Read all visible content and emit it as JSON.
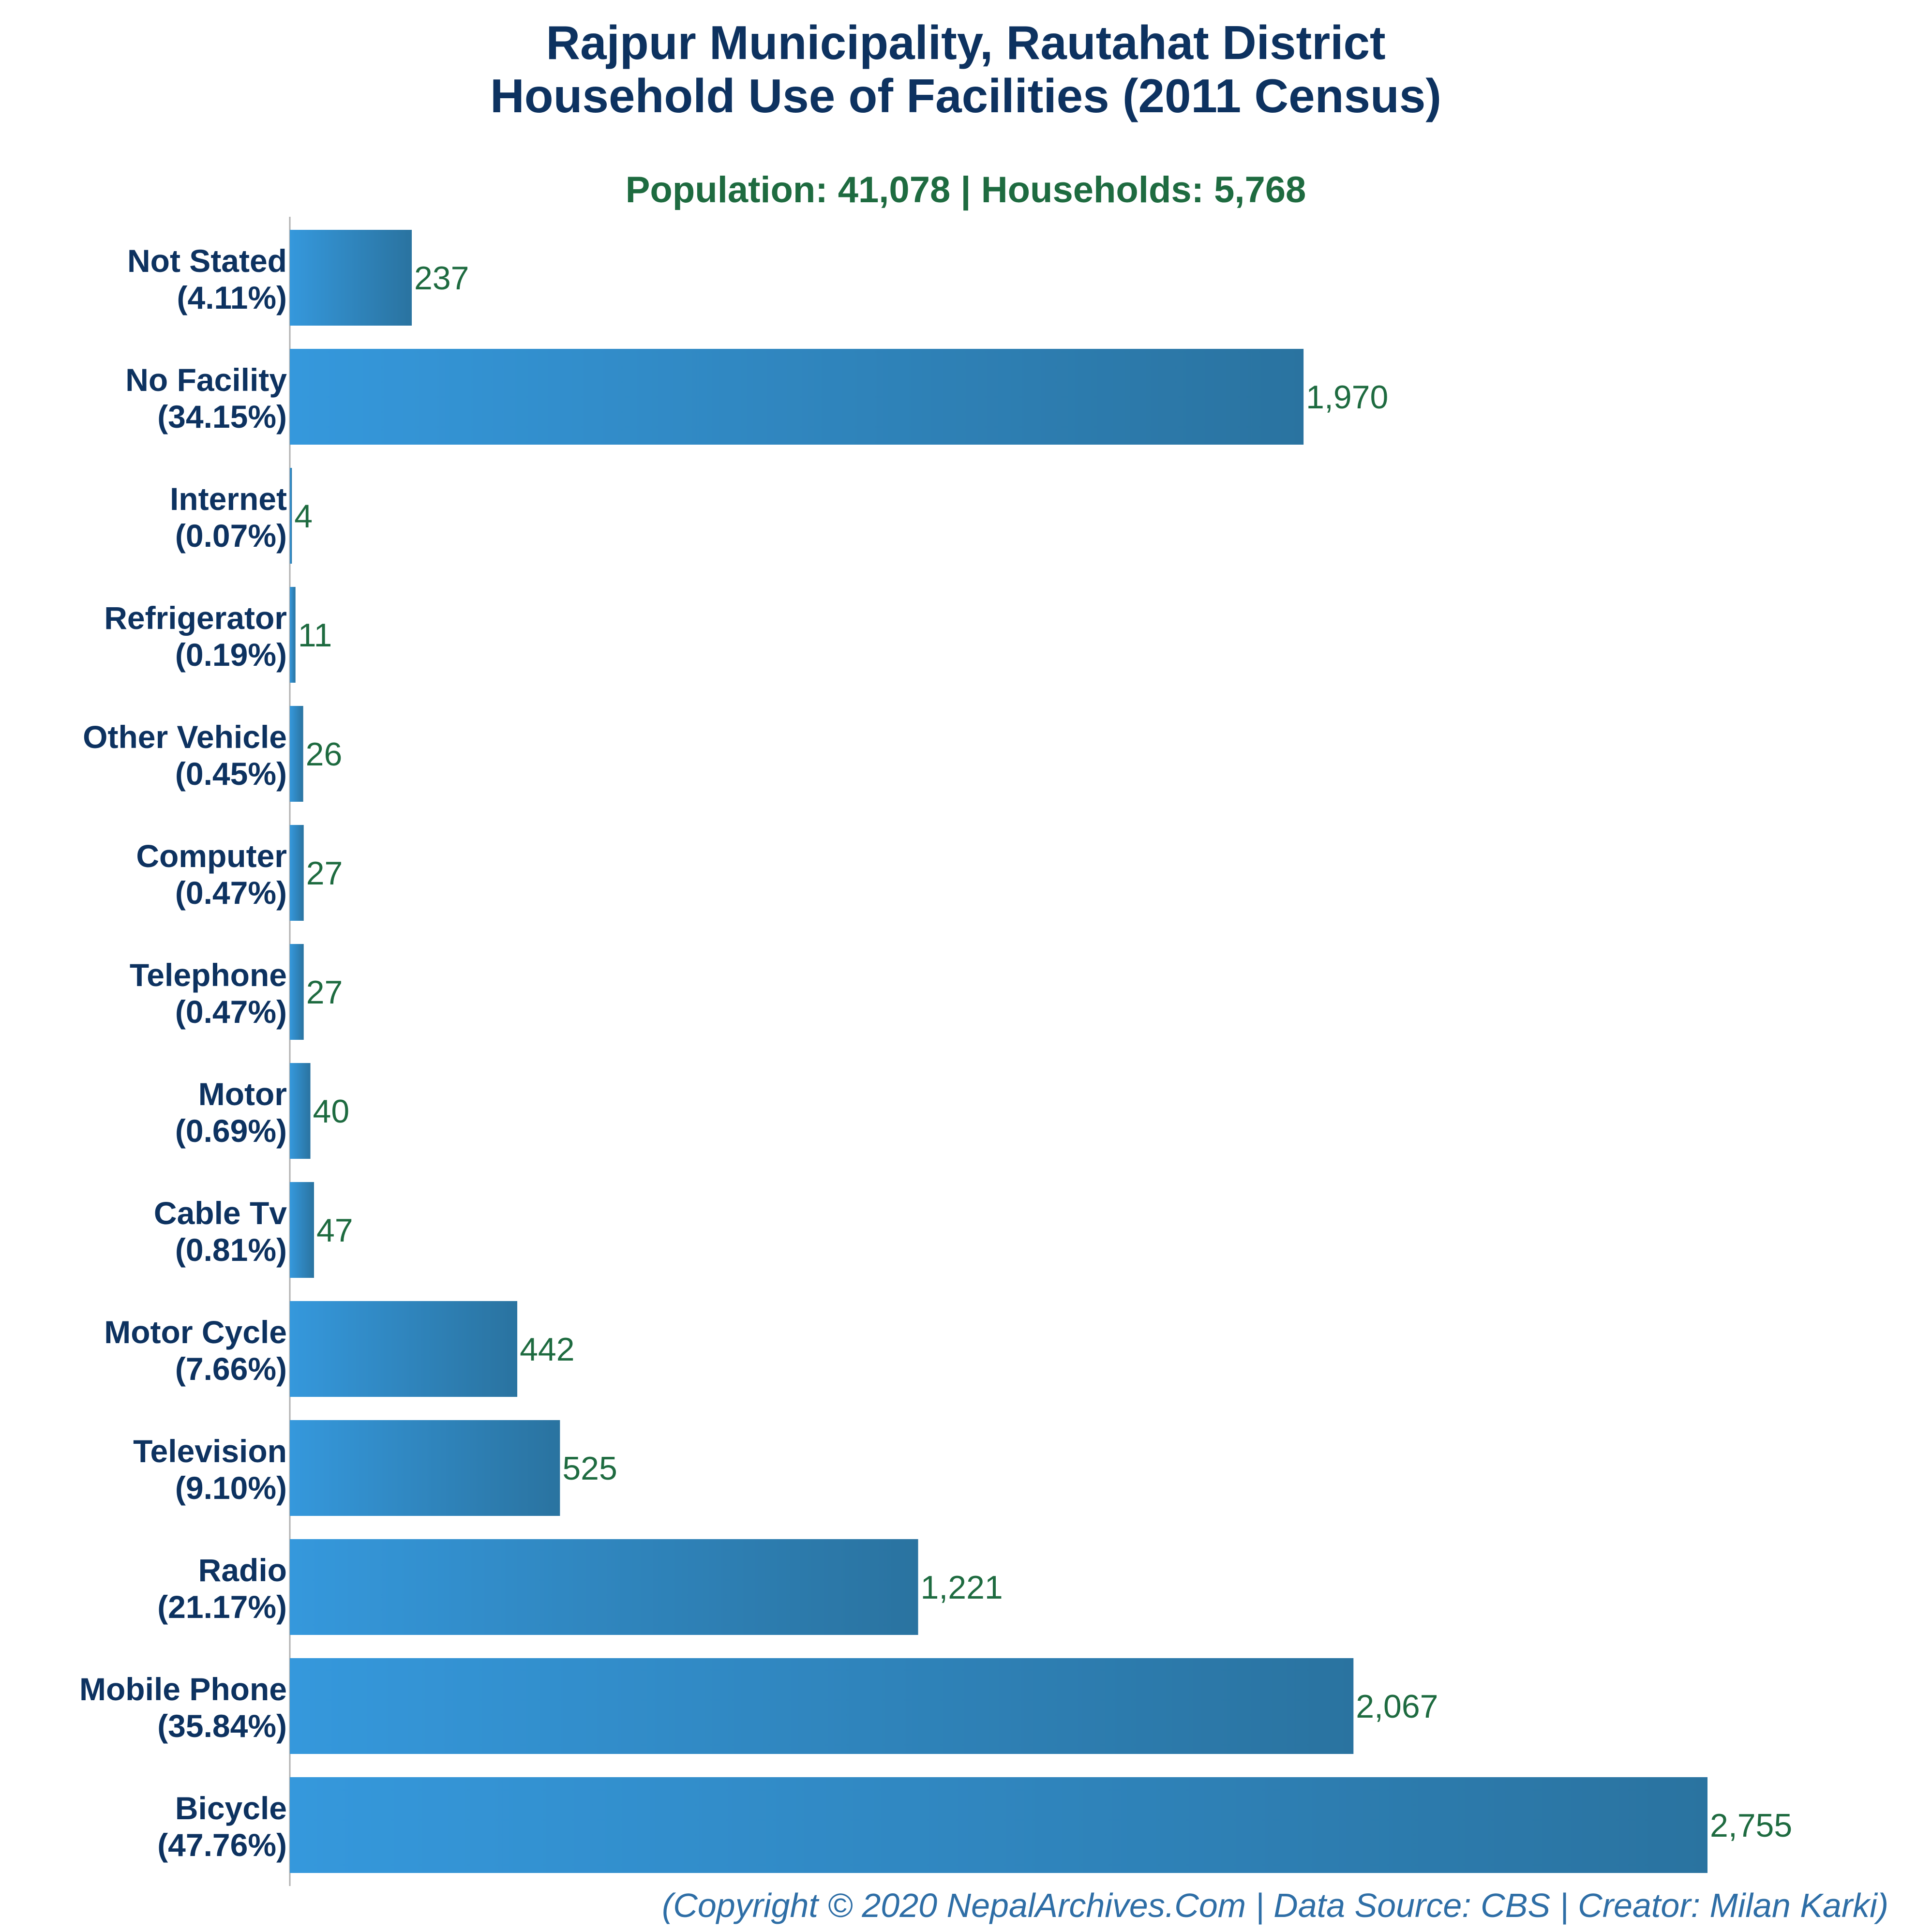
{
  "chart_data": {
    "type": "bar",
    "orientation": "horizontal",
    "title_line1": "Rajpur Municipality, Rautahat District",
    "title_line2": "Household Use of Facilities (2011 Census)",
    "subtitle": "Population: 41,078 | Households: 5,768",
    "categories": [
      {
        "name": "Not Stated",
        "pct": "(4.11%)",
        "value": 237,
        "label": "237"
      },
      {
        "name": "No Facility",
        "pct": "(34.15%)",
        "value": 1970,
        "label": "1,970"
      },
      {
        "name": "Internet",
        "pct": "(0.07%)",
        "value": 4,
        "label": "4"
      },
      {
        "name": "Refrigerator",
        "pct": "(0.19%)",
        "value": 11,
        "label": "11"
      },
      {
        "name": "Other Vehicle",
        "pct": "(0.45%)",
        "value": 26,
        "label": "26"
      },
      {
        "name": "Computer",
        "pct": "(0.47%)",
        "value": 27,
        "label": "27"
      },
      {
        "name": "Telephone",
        "pct": "(0.47%)",
        "value": 27,
        "label": "27"
      },
      {
        "name": "Motor",
        "pct": "(0.69%)",
        "value": 40,
        "label": "40"
      },
      {
        "name": "Cable Tv",
        "pct": "(0.81%)",
        "value": 47,
        "label": "47"
      },
      {
        "name": "Motor Cycle",
        "pct": "(7.66%)",
        "value": 442,
        "label": "442"
      },
      {
        "name": "Television",
        "pct": "(9.10%)",
        "value": 525,
        "label": "525"
      },
      {
        "name": "Radio",
        "pct": "(21.17%)",
        "value": 1221,
        "label": "1,221"
      },
      {
        "name": "Mobile Phone",
        "pct": "(35.84%)",
        "value": 2067,
        "label": "2,067"
      },
      {
        "name": "Bicycle",
        "pct": "(47.76%)",
        "value": 2755,
        "label": "2,755"
      }
    ],
    "xlim": [
      0,
      2755
    ],
    "grid": false,
    "legend": "none",
    "colors": {
      "bar_light": "#3598dc",
      "bar_dark": "#2a73a0",
      "title": "#0d3260",
      "subtitle": "#1e6b40",
      "value_label": "#1e6b40",
      "footer": "#2e6ea6"
    }
  },
  "footer": "(Copyright © 2020 NepalArchives.Com | Data Source: CBS | Creator: Milan Karki)"
}
